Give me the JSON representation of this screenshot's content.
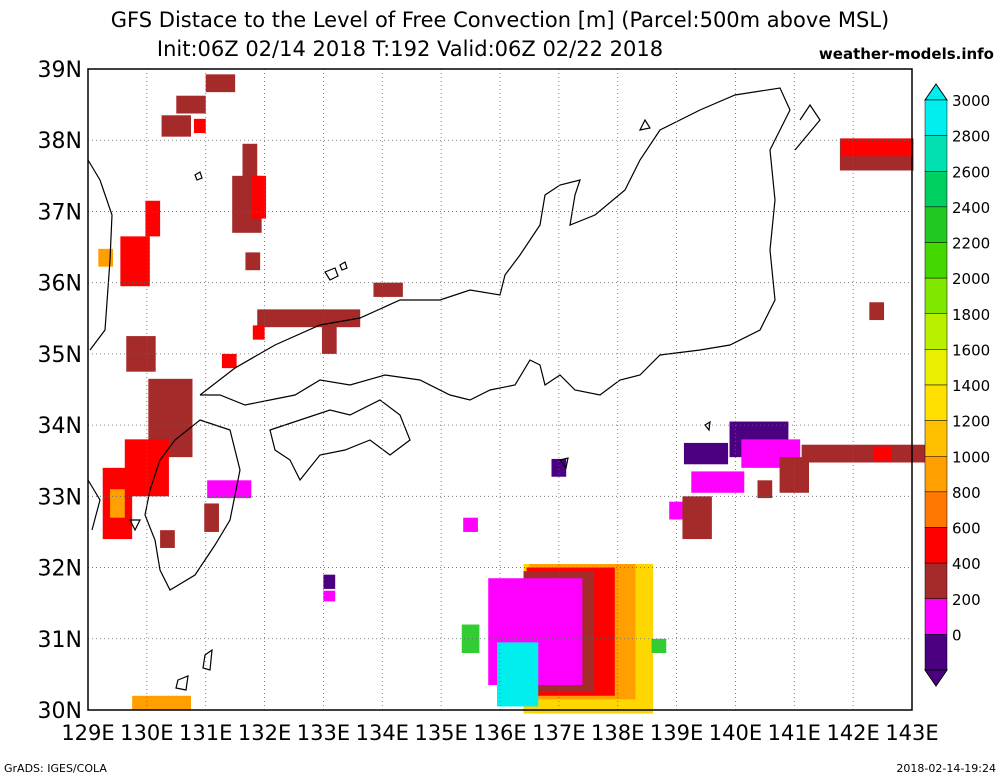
{
  "header": {
    "title_line1": "GFS Distace to the Level of Free Convection [m] (Parcel:500m above MSL)",
    "title_line2": "Init:06Z 02/14 2018 T:192 Valid:06Z 02/22 2018",
    "site": "weather-models.info"
  },
  "map": {
    "lat_labels": [
      "39N",
      "38N",
      "37N",
      "36N",
      "35N",
      "34N",
      "33N",
      "32N",
      "31N",
      "30N"
    ],
    "lon_labels": [
      "129E",
      "130E",
      "131E",
      "132E",
      "133E",
      "134E",
      "135E",
      "136E",
      "137E",
      "138E",
      "139E",
      "140E",
      "141E",
      "142E",
      "143E"
    ],
    "lon_range": [
      129,
      143
    ],
    "lat_range": [
      30,
      39
    ],
    "grid": "dotted",
    "cells": [
      {
        "lon": 130.25,
        "lat": 30.1,
        "color": "#ffa000",
        "w": 1.0,
        "h": 0.2
      },
      {
        "lon": 131.25,
        "lat": 38.8,
        "color": "#a52a2a",
        "w": 0.5,
        "h": 0.25
      },
      {
        "lon": 130.75,
        "lat": 38.5,
        "color": "#a52a2a",
        "w": 0.5,
        "h": 0.25
      },
      {
        "lon": 130.5,
        "lat": 38.2,
        "color": "#a52a2a",
        "w": 0.5,
        "h": 0.3
      },
      {
        "lon": 130.9,
        "lat": 38.2,
        "color": "#ff0000",
        "w": 0.2,
        "h": 0.2
      },
      {
        "lon": 131.75,
        "lat": 37.7,
        "color": "#a52a2a",
        "w": 0.25,
        "h": 0.5
      },
      {
        "lon": 131.7,
        "lat": 37.1,
        "color": "#a52a2a",
        "w": 0.5,
        "h": 0.8
      },
      {
        "lon": 131.9,
        "lat": 37.2,
        "color": "#ff0000",
        "w": 0.25,
        "h": 0.6
      },
      {
        "lon": 131.8,
        "lat": 36.3,
        "color": "#a52a2a",
        "w": 0.25,
        "h": 0.25
      },
      {
        "lon": 130.1,
        "lat": 36.9,
        "color": "#ff0000",
        "w": 0.25,
        "h": 0.5
      },
      {
        "lon": 129.8,
        "lat": 36.3,
        "color": "#ff0000",
        "w": 0.5,
        "h": 0.7
      },
      {
        "lon": 129.3,
        "lat": 36.35,
        "color": "#ffa000",
        "w": 0.25,
        "h": 0.25
      },
      {
        "lon": 132.75,
        "lat": 35.5,
        "color": "#a52a2a",
        "w": 1.75,
        "h": 0.25
      },
      {
        "lon": 133.1,
        "lat": 35.3,
        "color": "#a52a2a",
        "w": 0.25,
        "h": 0.6
      },
      {
        "lon": 134.1,
        "lat": 35.9,
        "color": "#a52a2a",
        "w": 0.5,
        "h": 0.2
      },
      {
        "lon": 131.9,
        "lat": 35.3,
        "color": "#ff0000",
        "w": 0.2,
        "h": 0.2
      },
      {
        "lon": 131.4,
        "lat": 34.9,
        "color": "#ff0000",
        "w": 0.25,
        "h": 0.2
      },
      {
        "lon": 129.9,
        "lat": 35.0,
        "color": "#a52a2a",
        "w": 0.5,
        "h": 0.5
      },
      {
        "lon": 130.4,
        "lat": 34.1,
        "color": "#a52a2a",
        "w": 0.75,
        "h": 1.1
      },
      {
        "lon": 130.0,
        "lat": 33.4,
        "color": "#ff0000",
        "w": 0.75,
        "h": 0.8
      },
      {
        "lon": 129.5,
        "lat": 32.9,
        "color": "#ff0000",
        "w": 0.5,
        "h": 1.0
      },
      {
        "lon": 129.5,
        "lat": 32.9,
        "color": "#ffa000",
        "w": 0.25,
        "h": 0.4
      },
      {
        "lon": 130.35,
        "lat": 32.4,
        "color": "#a52a2a",
        "w": 0.25,
        "h": 0.25
      },
      {
        "lon": 131.4,
        "lat": 33.1,
        "color": "#ff00ff",
        "w": 0.75,
        "h": 0.25
      },
      {
        "lon": 131.1,
        "lat": 32.7,
        "color": "#a52a2a",
        "w": 0.25,
        "h": 0.4
      },
      {
        "lon": 133.1,
        "lat": 31.8,
        "color": "#4b0082",
        "w": 0.2,
        "h": 0.2
      },
      {
        "lon": 133.1,
        "lat": 31.6,
        "color": "#ff00ff",
        "w": 0.2,
        "h": 0.15
      },
      {
        "lon": 135.5,
        "lat": 32.6,
        "color": "#ff00ff",
        "w": 0.25,
        "h": 0.2
      },
      {
        "lon": 137.0,
        "lat": 33.4,
        "color": "#4b0082",
        "w": 0.25,
        "h": 0.25
      },
      {
        "lon": 139.5,
        "lat": 33.6,
        "color": "#4b0082",
        "w": 0.75,
        "h": 0.3
      },
      {
        "lon": 140.4,
        "lat": 33.8,
        "color": "#4b0082",
        "w": 1.0,
        "h": 0.5
      },
      {
        "lon": 140.6,
        "lat": 33.6,
        "color": "#ff00ff",
        "w": 1.0,
        "h": 0.4
      },
      {
        "lon": 139.7,
        "lat": 33.2,
        "color": "#ff00ff",
        "w": 0.9,
        "h": 0.3
      },
      {
        "lon": 139.0,
        "lat": 32.8,
        "color": "#ff00ff",
        "w": 0.25,
        "h": 0.25
      },
      {
        "lon": 139.35,
        "lat": 32.7,
        "color": "#a52a2a",
        "w": 0.5,
        "h": 0.6
      },
      {
        "lon": 142.25,
        "lat": 33.6,
        "color": "#a52a2a",
        "w": 2.25,
        "h": 0.25
      },
      {
        "lon": 142.5,
        "lat": 33.6,
        "color": "#ff0000",
        "w": 0.3,
        "h": 0.2
      },
      {
        "lon": 141.0,
        "lat": 33.3,
        "color": "#a52a2a",
        "w": 0.5,
        "h": 0.5
      },
      {
        "lon": 140.5,
        "lat": 33.1,
        "color": "#a52a2a",
        "w": 0.25,
        "h": 0.25
      },
      {
        "lon": 142.4,
        "lat": 37.8,
        "color": "#a52a2a",
        "w": 1.25,
        "h": 0.45
      },
      {
        "lon": 142.4,
        "lat": 37.9,
        "color": "#ff0000",
        "w": 1.2,
        "h": 0.25
      },
      {
        "lon": 142.4,
        "lat": 35.6,
        "color": "#a52a2a",
        "w": 0.25,
        "h": 0.25
      },
      {
        "lon": 137.5,
        "lat": 31.0,
        "color": "#ffd700",
        "w": 2.2,
        "h": 2.1
      },
      {
        "lon": 137.4,
        "lat": 31.1,
        "color": "#ffa000",
        "w": 1.8,
        "h": 1.9
      },
      {
        "lon": 137.2,
        "lat": 31.1,
        "color": "#ff0000",
        "w": 1.5,
        "h": 1.8
      },
      {
        "lon": 137.0,
        "lat": 31.1,
        "color": "#a52a2a",
        "w": 1.2,
        "h": 1.7
      },
      {
        "lon": 136.6,
        "lat": 31.1,
        "color": "#ff00ff",
        "w": 1.6,
        "h": 1.5
      },
      {
        "lon": 136.3,
        "lat": 30.5,
        "color": "#00eeee",
        "w": 0.7,
        "h": 0.9
      },
      {
        "lon": 135.5,
        "lat": 31.0,
        "color": "#32cd32",
        "w": 0.3,
        "h": 0.4
      },
      {
        "lon": 138.7,
        "lat": 30.9,
        "color": "#32cd32",
        "w": 0.25,
        "h": 0.2
      }
    ]
  },
  "colorbar": {
    "labels": [
      "3000",
      "2800",
      "2600",
      "2400",
      "2200",
      "2000",
      "1800",
      "1600",
      "1400",
      "1200",
      "1000",
      "800",
      "600",
      "400",
      "200",
      "0"
    ],
    "colors": [
      "#00eeee",
      "#00e0b0",
      "#00d060",
      "#22c822",
      "#44d800",
      "#80e800",
      "#b8f000",
      "#e8f000",
      "#ffe000",
      "#ffc000",
      "#ffa000",
      "#ff7800",
      "#ff0000",
      "#a52a2a",
      "#ff00ff",
      "#4b0082"
    ]
  },
  "footer": {
    "left": "GrADS: IGES/COLA",
    "right": "2018-02-14-19:24"
  }
}
